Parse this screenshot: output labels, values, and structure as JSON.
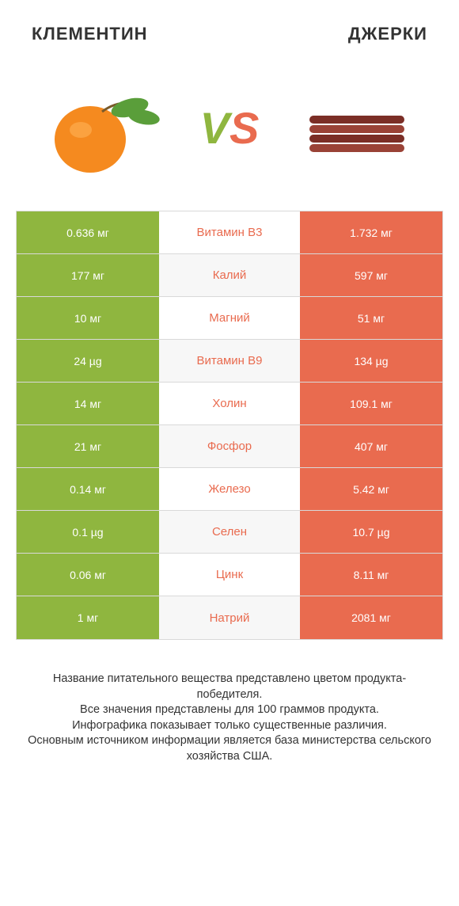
{
  "header": {
    "left_title": "КЛЕМЕНТИН",
    "right_title": "ДЖЕРКИ"
  },
  "vs": {
    "v": "V",
    "s": "S"
  },
  "colors": {
    "left": "#8fb63f",
    "right": "#e96b4f",
    "row_alt": "#f7f7f7",
    "border": "#d9d9d9"
  },
  "table": {
    "rows": [
      {
        "nutrient": "Витамин B3",
        "left": "0.636 мг",
        "right": "1.732 мг",
        "winner": "right"
      },
      {
        "nutrient": "Калий",
        "left": "177 мг",
        "right": "597 мг",
        "winner": "right"
      },
      {
        "nutrient": "Магний",
        "left": "10 мг",
        "right": "51 мг",
        "winner": "right"
      },
      {
        "nutrient": "Витамин B9",
        "left": "24 µg",
        "right": "134 µg",
        "winner": "right"
      },
      {
        "nutrient": "Холин",
        "left": "14 мг",
        "right": "109.1 мг",
        "winner": "right"
      },
      {
        "nutrient": "Фосфор",
        "left": "21 мг",
        "right": "407 мг",
        "winner": "right"
      },
      {
        "nutrient": "Железо",
        "left": "0.14 мг",
        "right": "5.42 мг",
        "winner": "right"
      },
      {
        "nutrient": "Селен",
        "left": "0.1 µg",
        "right": "10.7 µg",
        "winner": "right"
      },
      {
        "nutrient": "Цинк",
        "left": "0.06 мг",
        "right": "8.11 мг",
        "winner": "right"
      },
      {
        "nutrient": "Натрий",
        "left": "1 мг",
        "right": "2081 мг",
        "winner": "right"
      }
    ]
  },
  "footer": {
    "line1": "Название питательного вещества представлено цветом продукта-победителя.",
    "line2": "Все значения представлены для 100 граммов продукта.",
    "line3": "Инфографика показывает только существенные различия.",
    "line4": "Основным источником информации является база министерства сельского хозяйства США."
  }
}
